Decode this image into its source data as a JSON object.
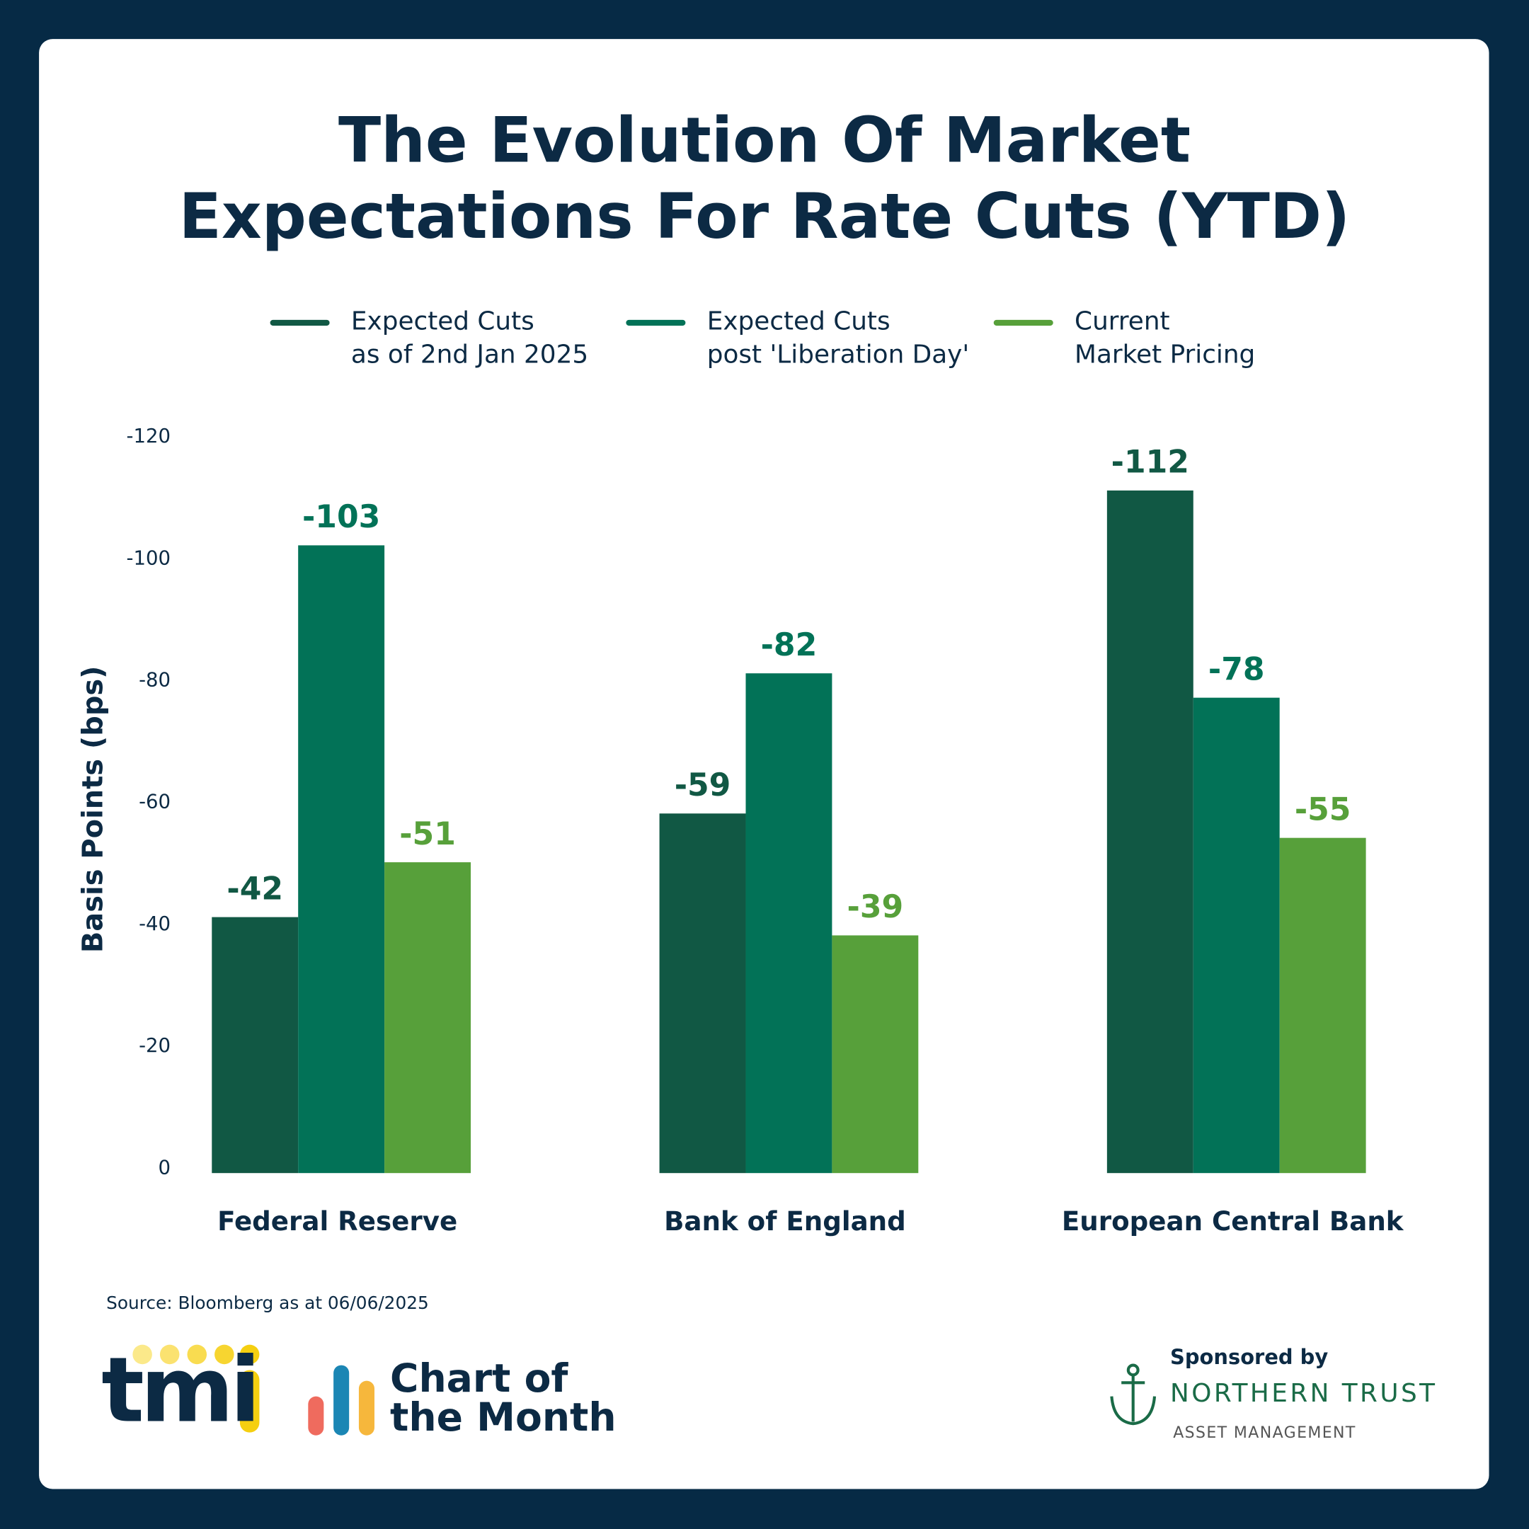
{
  "chart_data": {
    "type": "bar",
    "title": "The Evolution Of Market\nExpectations For Rate Cuts (YTD)",
    "y_label": "Basis Points (bps)",
    "categories": [
      "Federal Reserve",
      "Bank of England",
      "European Central Bank"
    ],
    "series": [
      {
        "name": "Expected Cuts\nas of 2nd Jan 2025",
        "color": "#115844",
        "values": [
          -42,
          -59,
          -112
        ]
      },
      {
        "name": "Expected Cuts\npost 'Liberation Day'",
        "color": "#027257",
        "values": [
          -103,
          -82,
          -78
        ]
      },
      {
        "name": "Current\nMarket Pricing",
        "color": "#57a03a",
        "values": [
          -51,
          -39,
          -55
        ]
      }
    ],
    "ylim": [
      0,
      -120
    ],
    "yticks": [
      0,
      -20,
      -40,
      -60,
      -80,
      -100,
      -120
    ],
    "grid": false,
    "source": "Source: Bloomberg as at 06/06/2025"
  },
  "footer": {
    "logo": "tmi",
    "chart_of_month": "Chart of\nthe Month",
    "sponsored_by": "Sponsored by",
    "sponsor": "NORTHERN TRUST",
    "sponsor_sub": "ASSET MANAGEMENT"
  }
}
